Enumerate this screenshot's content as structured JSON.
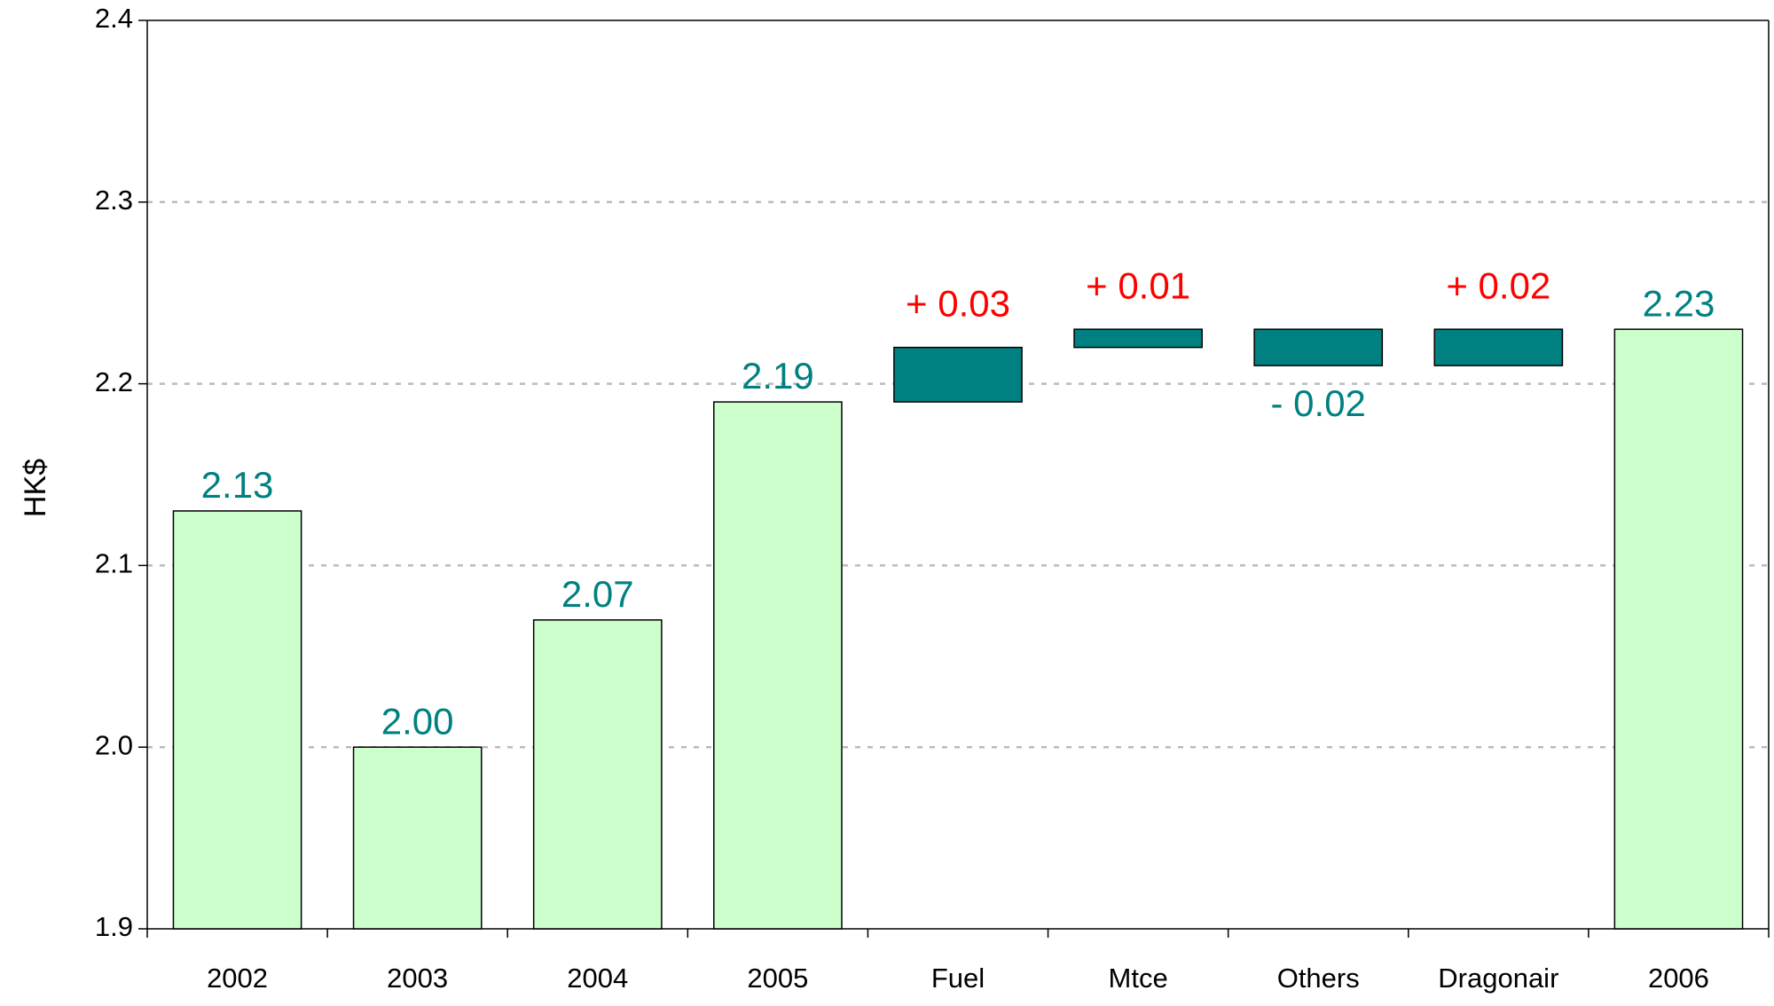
{
  "chart_data": {
    "type": "waterfall",
    "y_label": "HK$",
    "categories": [
      "2002",
      "2003",
      "2004",
      "2005",
      "Fuel",
      "Mtce",
      "Others",
      "Dragonair",
      "2006"
    ],
    "values": [
      2.13,
      2.0,
      2.07,
      2.19,
      0.03,
      0.01,
      -0.02,
      0.02,
      2.23
    ],
    "value_labels": [
      "2.13",
      "2.00",
      "2.07",
      "2.19",
      "+ 0.03",
      "+ 0.01",
      "- 0.02",
      "+ 0.02",
      "2.23"
    ],
    "is_total": [
      true,
      true,
      true,
      true,
      false,
      false,
      false,
      false,
      true
    ],
    "total_color": "#ccffcc",
    "delta_color": "#008080",
    "label_color": "#008080",
    "increase_label_color": "#ff0000",
    "ylim": [
      1.9,
      2.4
    ],
    "yticks": [
      1.9,
      {
        "value": 2,
        "label": "2.0"
      },
      2.1,
      2.2,
      2.3,
      2.4
    ],
    "grid": true
  }
}
